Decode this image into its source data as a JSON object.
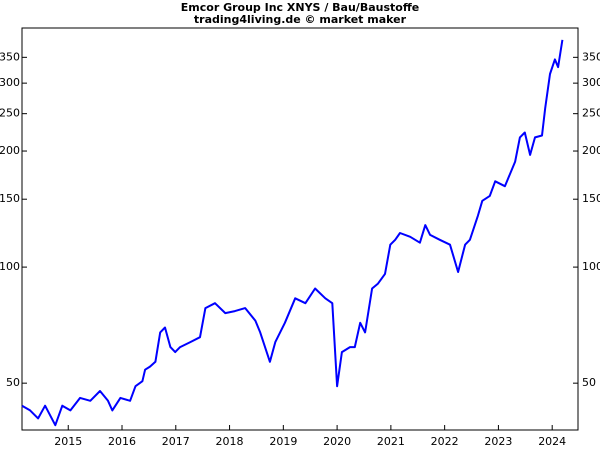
{
  "chart_data": {
    "type": "line",
    "title": "Emcor Group Inc XNYS / Bau/Baustoffe",
    "subtitle": "trading4living.de © market maker",
    "log_scale": true,
    "xlim": [
      2014.14,
      2024.48
    ],
    "xticks": [
      2015,
      2016,
      2017,
      2018,
      2019,
      2020,
      2021,
      2022,
      2023,
      2024
    ],
    "ylim": [
      37.8,
      417
    ],
    "yticks": [
      50,
      100,
      150,
      200,
      250,
      300,
      350
    ],
    "series": [
      {
        "color": "#0000ff",
        "x": [
          2014.14,
          2014.29,
          2014.44,
          2014.57,
          2014.76,
          2014.89,
          2015.04,
          2015.22,
          2015.41,
          2015.59,
          2015.74,
          2015.82,
          2015.97,
          2016.15,
          2016.25,
          2016.38,
          2016.43,
          2016.52,
          2016.62,
          2016.71,
          2016.8,
          2016.9,
          2016.99,
          2017.08,
          2017.27,
          2017.45,
          2017.55,
          2017.73,
          2017.92,
          2018.1,
          2018.29,
          2018.48,
          2018.57,
          2018.75,
          2018.85,
          2019.03,
          2019.22,
          2019.41,
          2019.59,
          2019.78,
          2019.91,
          2020.0,
          2020.09,
          2020.24,
          2020.33,
          2020.43,
          2020.52,
          2020.65,
          2020.76,
          2020.89,
          2020.99,
          2021.08,
          2021.17,
          2021.36,
          2021.54,
          2021.64,
          2021.73,
          2021.91,
          2022.1,
          2022.25,
          2022.38,
          2022.47,
          2022.62,
          2022.7,
          2022.84,
          2022.94,
          2023.12,
          2023.31,
          2023.4,
          2023.49,
          2023.59,
          2023.68,
          2023.81,
          2023.87,
          2023.96,
          2024.05,
          2024.11,
          2024.19
        ],
        "values": [
          43.7,
          42.5,
          40.5,
          43.7,
          38.9,
          43.7,
          42.5,
          45.8,
          45.0,
          47.7,
          45.0,
          42.5,
          45.8,
          45.0,
          49.1,
          50.6,
          54.2,
          55.2,
          56.8,
          67.7,
          69.7,
          62.0,
          60.2,
          62.0,
          63.9,
          65.8,
          78.3,
          80.6,
          76.0,
          76.9,
          78.3,
          72.6,
          67.7,
          56.8,
          63.9,
          71.7,
          83.0,
          80.6,
          88.0,
          83.0,
          80.6,
          49.1,
          60.2,
          62.0,
          62.0,
          71.7,
          67.7,
          88.0,
          90.6,
          96.0,
          114.3,
          117.7,
          122.6,
          119.8,
          115.7,
          128.5,
          121.2,
          117.7,
          114.3,
          97.1,
          114.3,
          117.7,
          136.2,
          148.6,
          153.0,
          166.9,
          162.1,
          187.6,
          217.0,
          223.4,
          195.4,
          217.0,
          219.5,
          258.4,
          316.9,
          345.8,
          330.1,
          388.5
        ]
      }
    ]
  }
}
